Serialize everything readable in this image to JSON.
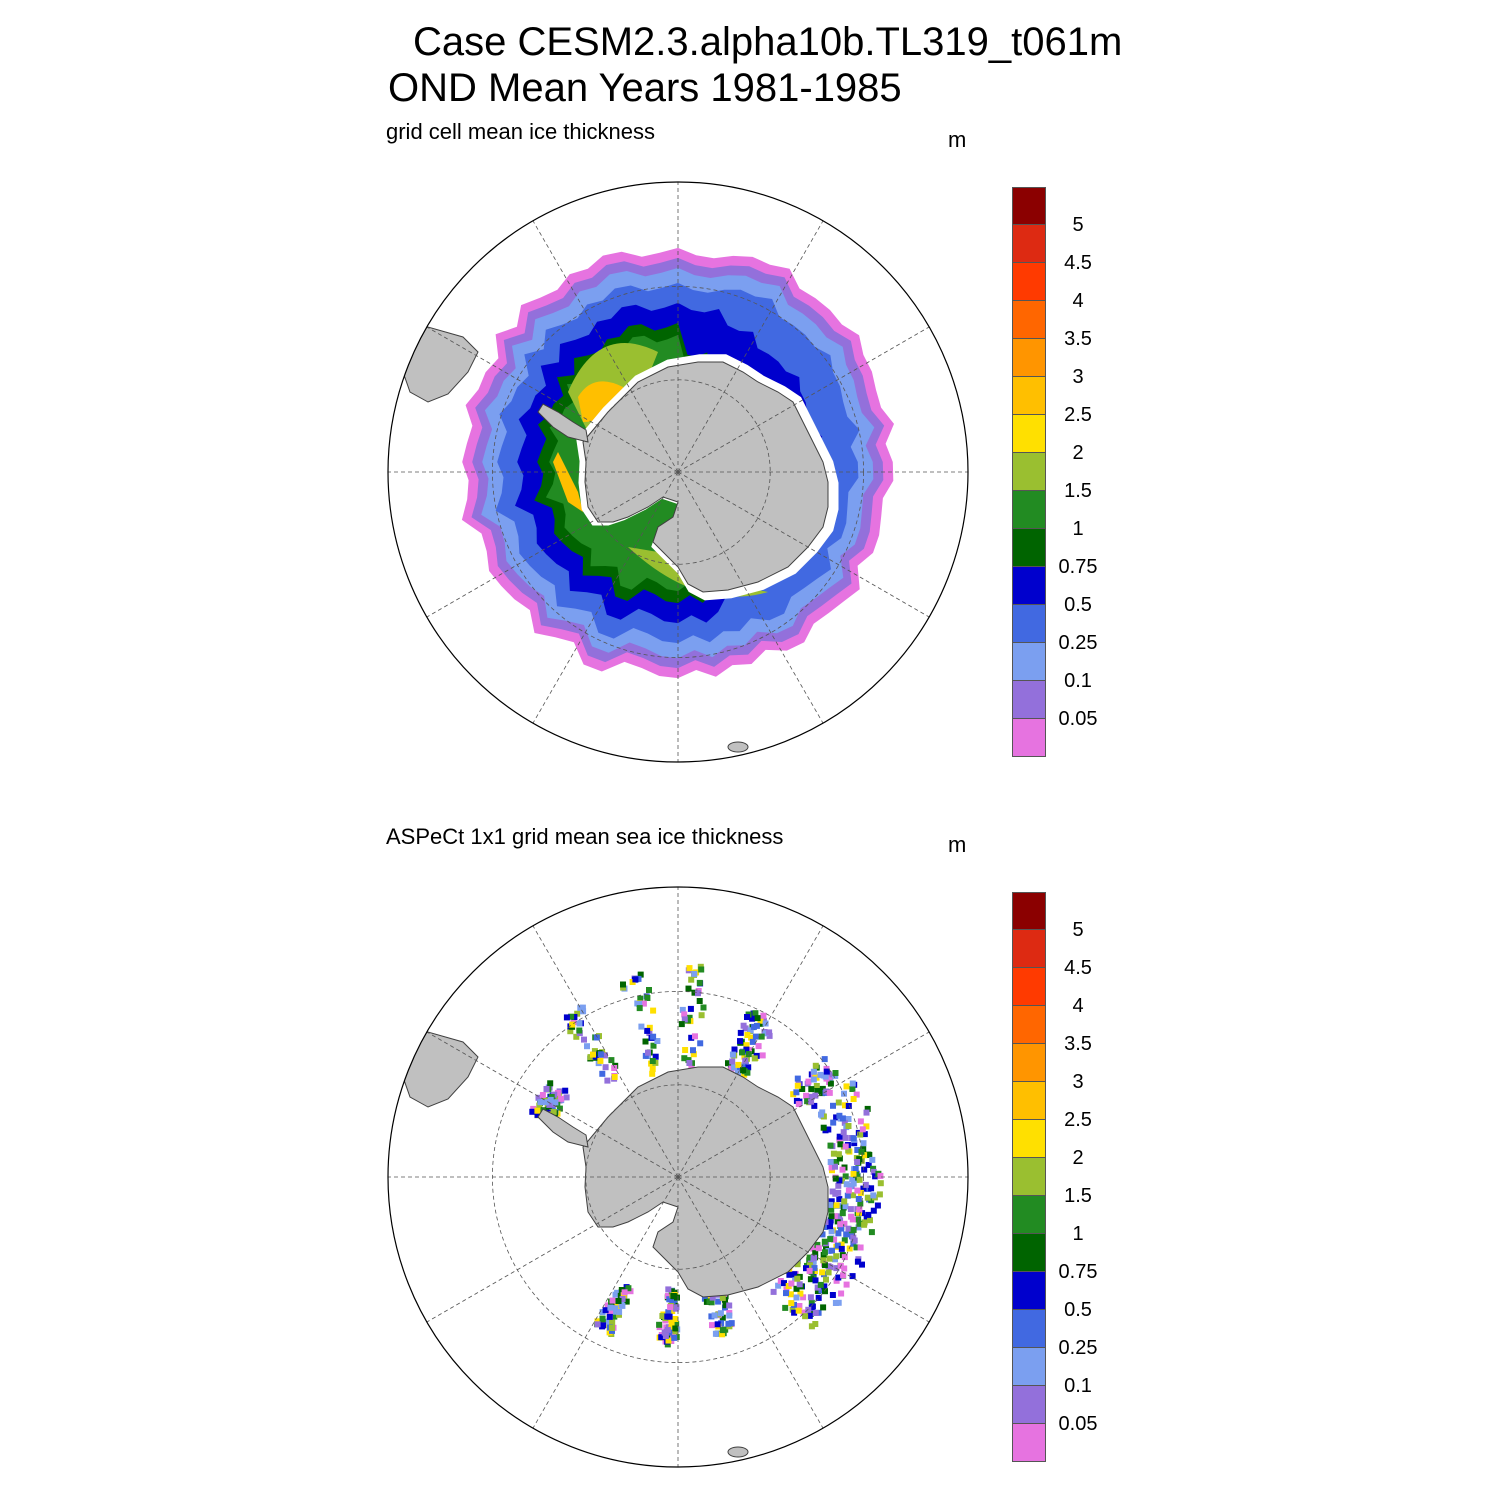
{
  "title": {
    "line1": "Case CESM2.3.alpha10b.TL319_t061m",
    "line2": "OND Mean   Years 1981-1985"
  },
  "panels": [
    {
      "id": "model",
      "label": "grid cell mean ice thickness",
      "units": "m"
    },
    {
      "id": "obs",
      "label": "ASPeCt 1x1 grid mean sea ice thickness",
      "units": "m"
    }
  ],
  "colorbar": {
    "colors": [
      "#8b0000",
      "#dd2a12",
      "#ff3a00",
      "#ff6600",
      "#ff9500",
      "#ffbf00",
      "#ffe000",
      "#9abf30",
      "#228b22",
      "#006400",
      "#0000cd",
      "#4169e1",
      "#7b9ff0",
      "#9370db",
      "#e673e0"
    ],
    "labels": [
      "5",
      "4.5",
      "4",
      "3.5",
      "3",
      "2.5",
      "2",
      "1.5",
      "1",
      "0.75",
      "0.5",
      "0.25",
      "0.1",
      "0.05"
    ]
  },
  "map_style": {
    "land": "#c0c0c0",
    "coast": "#404040",
    "grid": "#555555"
  },
  "chart_data": [
    {
      "type": "heatmap",
      "title": "grid cell mean ice thickness",
      "units": "m",
      "projection": "south polar stereographic",
      "contour_levels": [
        0.05,
        0.1,
        0.25,
        0.5,
        0.75,
        1,
        1.5,
        2,
        2.5,
        3,
        3.5,
        4,
        4.5,
        5
      ]
    },
    {
      "type": "heatmap",
      "title": "ASPeCt 1x1 grid mean sea ice thickness",
      "units": "m",
      "projection": "south polar stereographic",
      "contour_levels": [
        0.05,
        0.1,
        0.25,
        0.5,
        0.75,
        1,
        1.5,
        2,
        2.5,
        3,
        3.5,
        4,
        4.5,
        5
      ]
    }
  ]
}
